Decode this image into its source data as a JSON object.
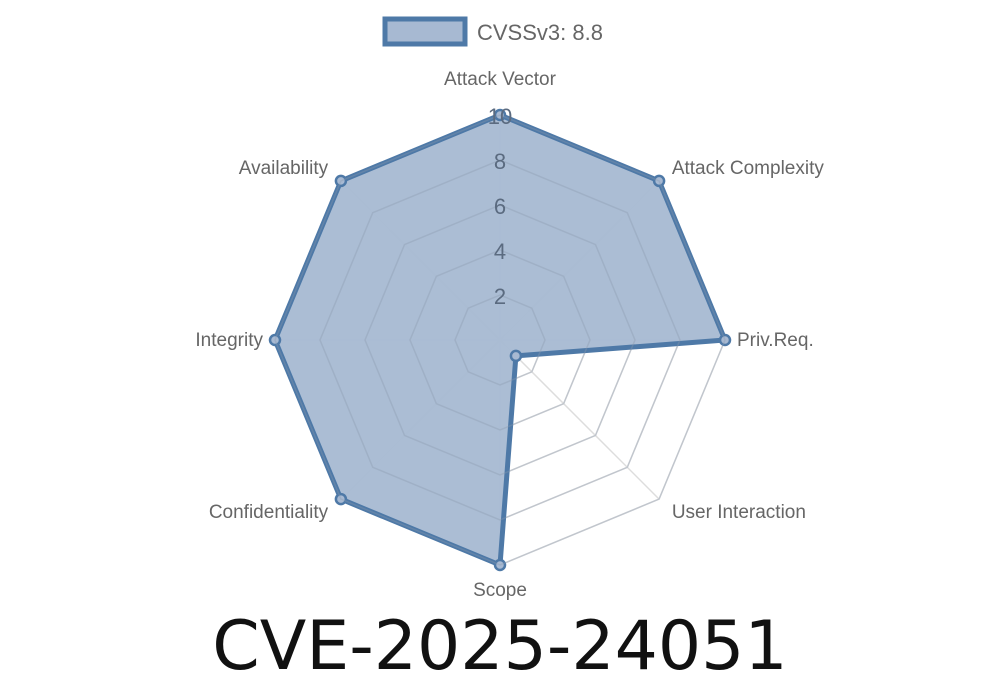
{
  "chart_data": {
    "type": "radar",
    "title": "CVE-2025-24051",
    "categories": [
      "Attack Vector",
      "Attack Complexity",
      "Priv.Req.",
      "User Interaction",
      "Scope",
      "Confidentiality",
      "Integrity",
      "Availability"
    ],
    "series": [
      {
        "name": "CVSSv3: 8.8",
        "values": [
          10,
          10,
          10,
          1,
          10,
          10,
          10,
          10
        ]
      }
    ],
    "rlim": [
      0,
      10
    ],
    "ticks": [
      "2",
      "4",
      "6",
      "8",
      "10"
    ],
    "grid": true,
    "legend": "top",
    "colors": {
      "fill": "#a7b9d2",
      "stroke": "#4e79a7",
      "grid": "#dddddd",
      "label": "#666666"
    }
  }
}
